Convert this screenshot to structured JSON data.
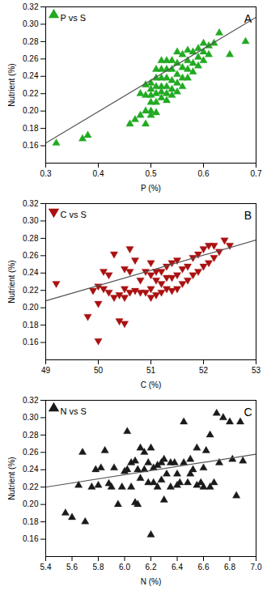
{
  "chart_data": [
    {
      "type": "scatter",
      "xlabel": "P (%)",
      "ylabel": "Nutrient (%)",
      "annotations": [
        "A"
      ],
      "legend": "upper left",
      "grid": false,
      "xlim": [
        0.3,
        0.7
      ],
      "ylim": [
        0.14,
        0.32
      ],
      "xticks": [
        0.3,
        0.4,
        0.5,
        0.6,
        0.7
      ],
      "yticks": [
        0.16,
        0.18,
        {
          "value": 0.2,
          "label": "0.20"
        },
        0.22,
        0.24,
        0.26,
        0.28,
        {
          "value": 0.3,
          "label": "0.30"
        },
        0.32
      ],
      "series": [
        {
          "name": "P vs S",
          "type": "scatter",
          "color": "#22aa22",
          "marker": "triangle-up",
          "x": [
            0.32,
            0.37,
            0.38,
            0.46,
            0.47,
            0.48,
            0.48,
            0.49,
            0.49,
            0.49,
            0.49,
            0.5,
            0.5,
            0.5,
            0.5,
            0.5,
            0.5,
            0.51,
            0.51,
            0.51,
            0.51,
            0.51,
            0.51,
            0.52,
            0.52,
            0.52,
            0.52,
            0.52,
            0.52,
            0.53,
            0.53,
            0.53,
            0.53,
            0.53,
            0.53,
            0.54,
            0.54,
            0.54,
            0.54,
            0.54,
            0.55,
            0.55,
            0.55,
            0.55,
            0.55,
            0.56,
            0.56,
            0.56,
            0.56,
            0.57,
            0.57,
            0.57,
            0.57,
            0.58,
            0.58,
            0.58,
            0.59,
            0.59,
            0.59,
            0.6,
            0.6,
            0.6,
            0.61,
            0.61,
            0.62,
            0.63,
            0.65,
            0.68
          ],
          "values": [
            0.163,
            0.168,
            0.172,
            0.185,
            0.19,
            0.195,
            0.22,
            0.2,
            0.218,
            0.23,
            0.185,
            0.2,
            0.21,
            0.218,
            0.225,
            0.232,
            0.195,
            0.198,
            0.21,
            0.22,
            0.228,
            0.238,
            0.248,
            0.215,
            0.222,
            0.228,
            0.238,
            0.248,
            0.258,
            0.212,
            0.22,
            0.228,
            0.238,
            0.248,
            0.258,
            0.218,
            0.225,
            0.235,
            0.248,
            0.258,
            0.222,
            0.232,
            0.242,
            0.255,
            0.268,
            0.228,
            0.238,
            0.25,
            0.265,
            0.238,
            0.248,
            0.258,
            0.27,
            0.245,
            0.255,
            0.268,
            0.252,
            0.262,
            0.272,
            0.258,
            0.268,
            0.278,
            0.265,
            0.275,
            0.278,
            0.29,
            0.265,
            0.28
          ]
        },
        {
          "type": "line",
          "color": "#555555",
          "x": [
            0.3,
            0.7
          ],
          "values": [
            0.163,
            0.308
          ]
        }
      ]
    },
    {
      "type": "scatter",
      "xlabel": "C (%)",
      "ylabel": "Nutrient (%)",
      "annotations": [
        "B"
      ],
      "legend": "upper left",
      "grid": false,
      "xlim": [
        49,
        53
      ],
      "ylim": [
        0.14,
        0.32
      ],
      "xticks": [
        49,
        50,
        51,
        52,
        53
      ],
      "yticks": [
        0.16,
        0.18,
        {
          "value": 0.2,
          "label": "0.20"
        },
        0.22,
        0.24,
        0.26,
        0.28,
        {
          "value": 0.3,
          "label": "0.30"
        },
        0.32
      ],
      "series": [
        {
          "name": "C vs S",
          "type": "scatter",
          "color": "#aa1111",
          "marker": "triangle-down",
          "x": [
            49.2,
            49.8,
            49.9,
            50.0,
            50.0,
            50.0,
            50.1,
            50.1,
            50.2,
            50.2,
            50.3,
            50.3,
            50.4,
            50.4,
            50.5,
            50.5,
            50.5,
            50.5,
            50.6,
            50.6,
            50.6,
            50.7,
            50.7,
            50.8,
            50.8,
            50.9,
            50.9,
            51.0,
            51.0,
            51.0,
            51.0,
            51.1,
            51.1,
            51.1,
            51.2,
            51.2,
            51.2,
            51.3,
            51.3,
            51.3,
            51.4,
            51.4,
            51.4,
            51.5,
            51.5,
            51.5,
            51.6,
            51.6,
            51.7,
            51.7,
            51.8,
            51.8,
            51.9,
            51.9,
            52.0,
            52.0,
            52.1,
            52.1,
            52.2,
            52.2,
            52.3,
            52.4,
            52.5
          ],
          "values": [
            0.228,
            0.19,
            0.22,
            0.162,
            0.205,
            0.225,
            0.222,
            0.242,
            0.218,
            0.238,
            0.212,
            0.262,
            0.185,
            0.215,
            0.182,
            0.212,
            0.222,
            0.245,
            0.218,
            0.242,
            0.268,
            0.22,
            0.255,
            0.218,
            0.232,
            0.218,
            0.242,
            0.212,
            0.222,
            0.238,
            0.252,
            0.215,
            0.232,
            0.242,
            0.218,
            0.228,
            0.242,
            0.222,
            0.235,
            0.248,
            0.22,
            0.235,
            0.252,
            0.222,
            0.238,
            0.255,
            0.228,
            0.245,
            0.232,
            0.248,
            0.238,
            0.258,
            0.242,
            0.262,
            0.248,
            0.268,
            0.252,
            0.272,
            0.258,
            0.272,
            0.265,
            0.278,
            0.272
          ]
        },
        {
          "type": "line",
          "color": "#555555",
          "x": [
            49,
            53
          ],
          "values": [
            0.208,
            0.278
          ]
        }
      ]
    },
    {
      "type": "scatter",
      "xlabel": "N (%)",
      "ylabel": "Nutrient (%)",
      "annotations": [
        "C"
      ],
      "legend": "upper left",
      "grid": false,
      "xlim": [
        5.4,
        7.0
      ],
      "ylim": [
        0.14,
        0.32
      ],
      "xticks": [
        5.4,
        5.6,
        5.8,
        {
          "value": 6.0,
          "label": "6.0"
        },
        6.2,
        6.4,
        6.6,
        6.8,
        {
          "value": 7.0,
          "label": "7.0"
        }
      ],
      "yticks": [
        0.16,
        0.18,
        {
          "value": 0.2,
          "label": "0.20"
        },
        0.22,
        0.24,
        0.26,
        0.28,
        {
          "value": 0.3,
          "label": "0.30"
        },
        0.32
      ],
      "series": [
        {
          "name": "N vs S",
          "type": "scatter",
          "color": "#1a1a1a",
          "marker": "triangle-up",
          "x": [
            5.55,
            5.6,
            5.65,
            5.68,
            5.7,
            5.75,
            5.78,
            5.8,
            5.82,
            5.85,
            5.88,
            5.9,
            5.92,
            5.95,
            5.98,
            6.0,
            6.02,
            6.02,
            6.05,
            6.05,
            6.08,
            6.08,
            6.1,
            6.1,
            6.12,
            6.12,
            6.15,
            6.15,
            6.18,
            6.18,
            6.2,
            6.2,
            6.22,
            6.22,
            6.25,
            6.25,
            6.28,
            6.28,
            6.3,
            6.3,
            6.32,
            6.35,
            6.35,
            6.38,
            6.4,
            6.4,
            6.42,
            6.45,
            6.45,
            6.48,
            6.5,
            6.5,
            6.52,
            6.55,
            6.55,
            6.58,
            6.6,
            6.6,
            6.62,
            6.65,
            6.65,
            6.68,
            6.7,
            6.72,
            6.75,
            6.8,
            6.82,
            6.85,
            6.88,
            6.9
          ],
          "values": [
            0.19,
            0.185,
            0.222,
            0.26,
            0.18,
            0.22,
            0.24,
            0.222,
            0.242,
            0.262,
            0.224,
            0.22,
            0.242,
            0.2,
            0.22,
            0.238,
            0.284,
            0.24,
            0.248,
            0.22,
            0.202,
            0.25,
            0.2,
            0.24,
            0.265,
            0.23,
            0.24,
            0.26,
            0.225,
            0.248,
            0.165,
            0.265,
            0.225,
            0.242,
            0.22,
            0.245,
            0.228,
            0.248,
            0.205,
            0.252,
            0.235,
            0.22,
            0.248,
            0.248,
            0.222,
            0.235,
            0.225,
            0.248,
            0.295,
            0.225,
            0.235,
            0.252,
            0.24,
            0.222,
            0.265,
            0.225,
            0.22,
            0.242,
            0.262,
            0.22,
            0.28,
            0.225,
            0.305,
            0.248,
            0.3,
            0.295,
            0.252,
            0.21,
            0.295,
            0.25
          ]
        },
        {
          "type": "line",
          "color": "#555555",
          "x": [
            5.4,
            7.0
          ],
          "values": [
            0.22,
            0.258
          ]
        }
      ]
    }
  ]
}
